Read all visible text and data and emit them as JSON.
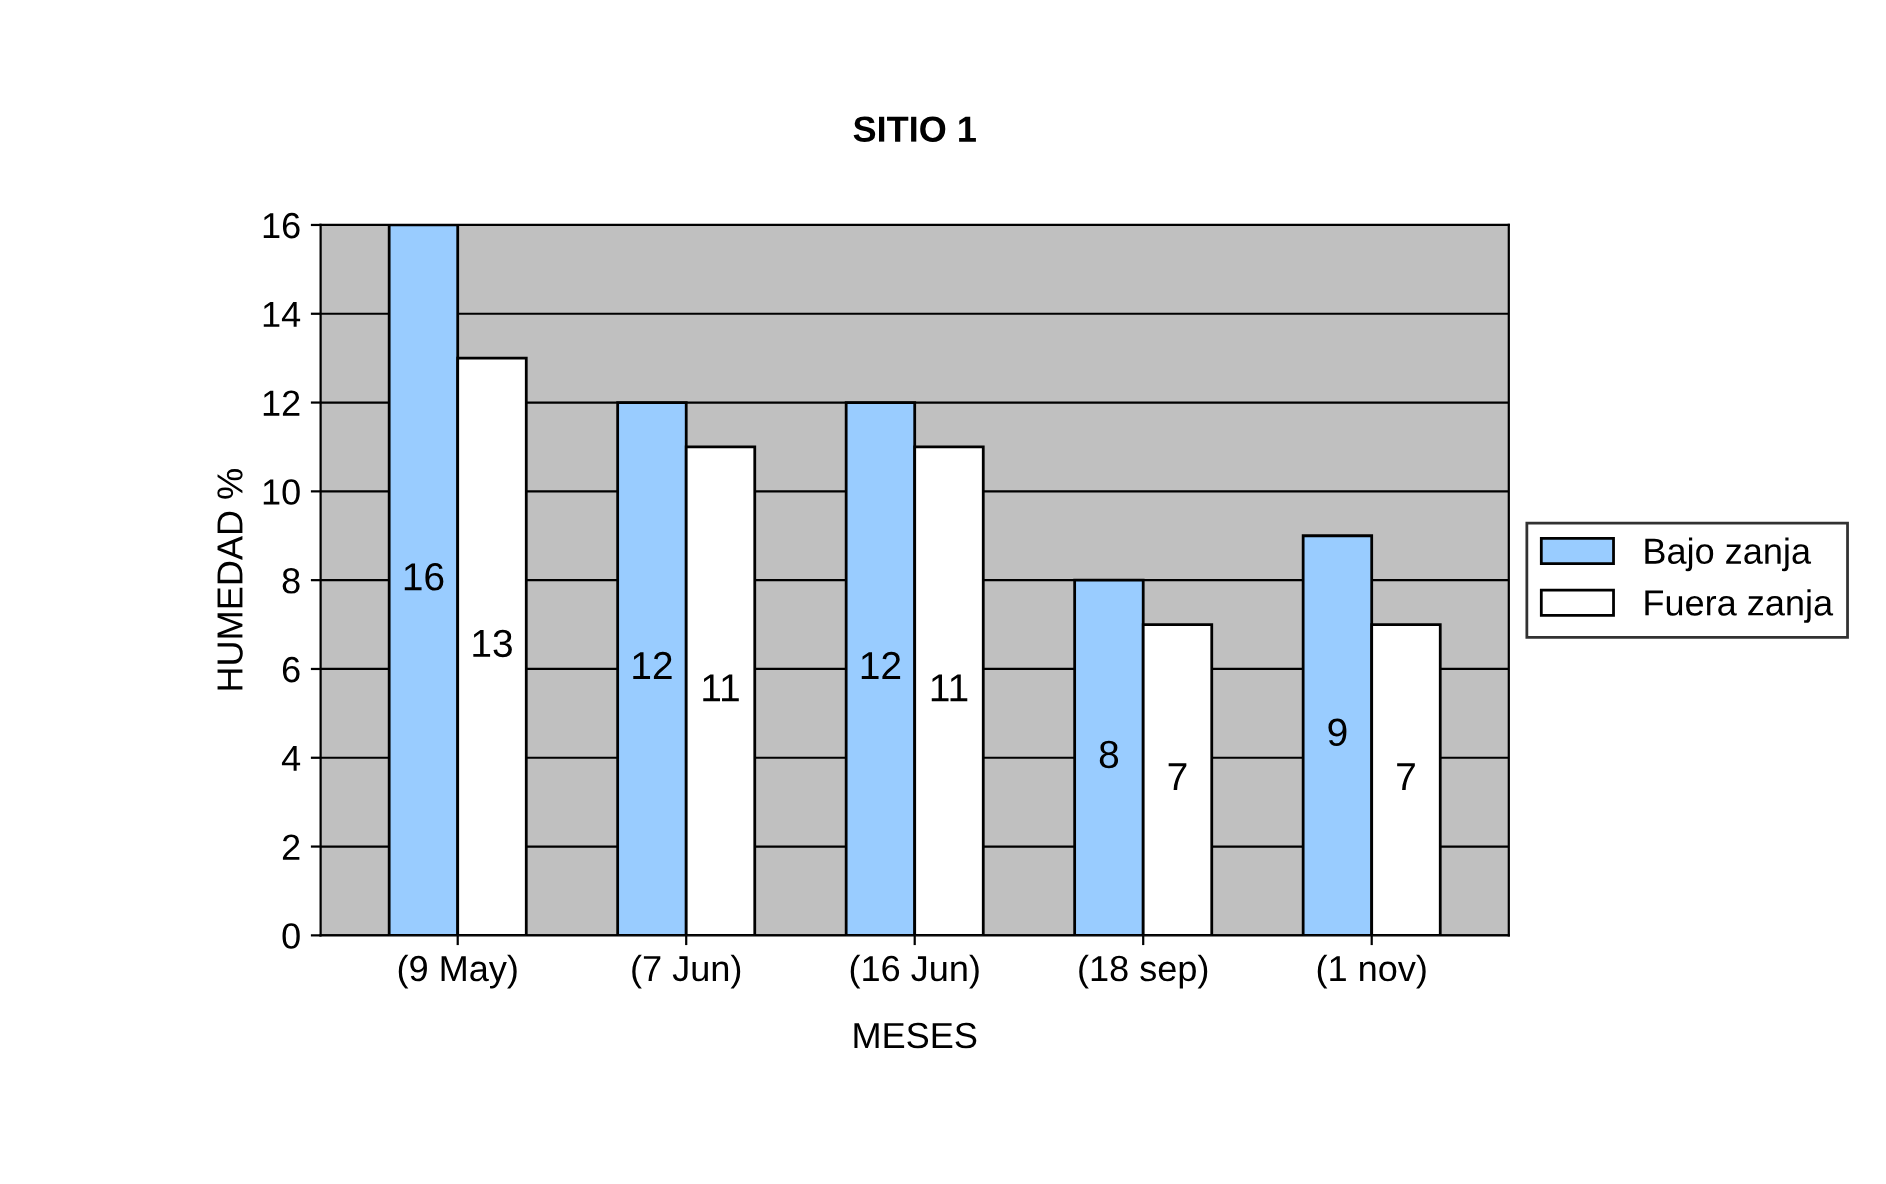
{
  "chart_data": {
    "type": "bar",
    "title": "SITIO 1",
    "xlabel": "MESES",
    "ylabel": "HUMEDAD %",
    "categories": [
      "(9 May)",
      "(7 Jun)",
      "(16 Jun)",
      "(18 sep)",
      "(1 nov)"
    ],
    "series": [
      {
        "name": "Bajo zanja",
        "color": "#99ccff",
        "values": [
          16,
          12,
          12,
          8,
          9
        ]
      },
      {
        "name": "Fuera zanja",
        "color": "#ffffff",
        "values": [
          13,
          11,
          11,
          7,
          7
        ]
      }
    ],
    "ylim": [
      0,
      16
    ],
    "yticks": [
      0,
      2,
      4,
      6,
      8,
      10,
      12,
      14,
      16
    ],
    "grid": "y",
    "legend": "right",
    "data_labels": true
  }
}
